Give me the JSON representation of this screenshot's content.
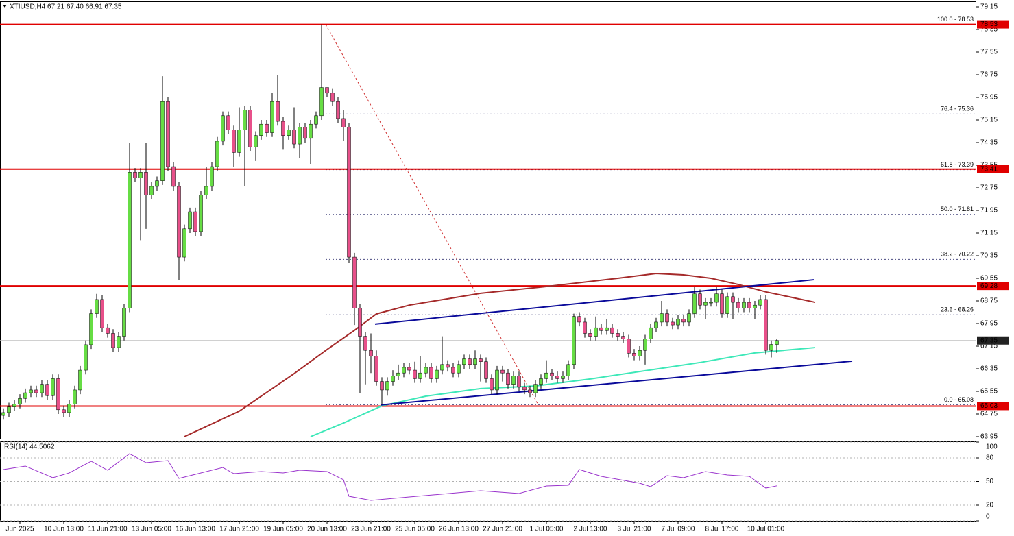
{
  "chart_data": {
    "type": "candlestick",
    "title": "XTIUSD,H4  67.21 67.40 66.91 67.35",
    "up_color": "#66dd44",
    "down_color": "#e8508a",
    "open": [
      64.7,
      64.8,
      65.0,
      65.1,
      65.3,
      65.5,
      65.6,
      65.5,
      65.8,
      65.4,
      66.0,
      64.9,
      64.8,
      65.1,
      65.6,
      66.3,
      67.2,
      68.3,
      68.8,
      67.8,
      67.6,
      67.1,
      67.5,
      68.5,
      73.3,
      73.1,
      73.3,
      72.5,
      72.8,
      73.0,
      75.8,
      73.5,
      72.8,
      70.3,
      71.3,
      71.9,
      71.2,
      72.5,
      72.8,
      73.5,
      74.4,
      75.3,
      74.8,
      74.0,
      74.8,
      75.5,
      74.2,
      74.6,
      75.0,
      74.7,
      75.8,
      75.1,
      74.6,
      74.8,
      74.3,
      74.9,
      74.5,
      75.0,
      75.3,
      76.3,
      76.1,
      75.8,
      75.2,
      74.9,
      70.3,
      68.5,
      67.5,
      67.0,
      66.8,
      65.9,
      65.6,
      65.9,
      66.1,
      66.2,
      66.4,
      66.3,
      66.0,
      66.2,
      66.4,
      66.0,
      66.3,
      66.5,
      66.4,
      66.2,
      66.5,
      66.7,
      66.5,
      66.7,
      66.6,
      66.0,
      65.6,
      66.3,
      66.2,
      65.8,
      66.1,
      65.7,
      65.6,
      65.5,
      65.8,
      66.0,
      66.2,
      66.1,
      66.0,
      66.1,
      66.5,
      68.2,
      68.0,
      67.6,
      67.5,
      67.8,
      67.7,
      67.8,
      67.6,
      67.5,
      67.4,
      66.9,
      66.8,
      67.0,
      67.4,
      67.8,
      68.0,
      68.3,
      68.0,
      67.9,
      68.1,
      68.0,
      68.3,
      69.0,
      68.6,
      68.7,
      68.7,
      69.0,
      68.3,
      68.9,
      68.7,
      68.5,
      68.7,
      68.5,
      68.6,
      68.8,
      67.0,
      67.21
    ],
    "high": [
      64.95,
      65.15,
      65.25,
      65.45,
      65.65,
      65.75,
      65.75,
      65.95,
      65.95,
      66.15,
      66.15,
      65.05,
      65.25,
      65.75,
      66.45,
      67.35,
      68.45,
      69.0,
      68.95,
      67.95,
      67.75,
      67.65,
      68.65,
      74.35,
      73.45,
      73.45,
      74.35,
      72.95,
      73.15,
      76.7,
      75.95,
      73.65,
      72.95,
      71.45,
      72.05,
      72.05,
      72.65,
      73.5,
      73.65,
      74.55,
      75.45,
      75.45,
      74.95,
      75.6,
      75.65,
      75.65,
      74.75,
      75.15,
      75.15,
      76.1,
      76.75,
      75.25,
      74.95,
      75.6,
      75.05,
      75.05,
      75.15,
      75.45,
      78.53,
      76.25,
      76.25,
      75.95,
      75.5,
      75.05,
      70.45,
      68.65,
      67.65,
      67.6,
      67.0,
      66.05,
      66.05,
      66.3,
      66.5,
      66.55,
      66.55,
      66.6,
      66.8,
      66.55,
      66.55,
      66.45,
      67.5,
      66.65,
      66.55,
      66.65,
      66.85,
      66.85,
      67.0,
      66.85,
      66.75,
      66.15,
      66.45,
      66.45,
      66.35,
      66.25,
      66.25,
      65.85,
      65.75,
      65.95,
      66.15,
      66.65,
      66.35,
      66.25,
      66.25,
      66.65,
      68.3,
      68.35,
      68.15,
      67.75,
      68.2,
      67.95,
      68.1,
      67.95,
      67.75,
      67.65,
      67.55,
      67.05,
      67.15,
      67.55,
      67.95,
      68.15,
      68.75,
      68.45,
      68.15,
      68.25,
      68.25,
      68.45,
      69.25,
      69.15,
      68.85,
      68.85,
      69.25,
      69.15,
      69.05,
      69.05,
      68.85,
      68.85,
      68.85,
      68.75,
      68.95,
      68.95,
      67.35,
      67.4
    ],
    "low": [
      64.55,
      64.65,
      64.85,
      64.95,
      65.15,
      65.35,
      65.35,
      65.35,
      65.25,
      65.25,
      64.75,
      64.65,
      64.65,
      64.95,
      65.45,
      66.15,
      67.05,
      68.15,
      67.65,
      67.45,
      66.95,
      66.95,
      67.35,
      68.35,
      72.95,
      70.9,
      71.3,
      72.35,
      72.65,
      72.85,
      73.35,
      72.65,
      69.5,
      70.15,
      71.15,
      71.05,
      71.05,
      72.35,
      72.65,
      73.35,
      74.25,
      74.65,
      73.5,
      73.85,
      72.8,
      74.05,
      73.7,
      74.45,
      74.55,
      74.55,
      74.95,
      74.1,
      74.45,
      74.15,
      73.8,
      74.35,
      73.6,
      74.85,
      75.15,
      75.95,
      75.65,
      75.05,
      74.4,
      70.1,
      67.9,
      65.5,
      65.8,
      66.2,
      65.75,
      65.08,
      65.4,
      65.75,
      65.95,
      66.05,
      66.15,
      65.85,
      65.85,
      66.05,
      65.85,
      65.85,
      66.15,
      66.25,
      66.05,
      66.05,
      66.35,
      66.35,
      66.35,
      65.9,
      65.85,
      65.45,
      65.45,
      65.9,
      65.65,
      65.65,
      65.55,
      65.45,
      65.35,
      65.35,
      65.65,
      65.85,
      65.95,
      65.85,
      65.85,
      65.95,
      66.35,
      67.85,
      67.45,
      67.35,
      67.35,
      67.55,
      67.55,
      67.45,
      67.35,
      67.25,
      66.75,
      66.65,
      66.65,
      66.5,
      67.25,
      67.65,
      67.85,
      67.85,
      67.75,
      67.75,
      67.85,
      67.85,
      68.15,
      68.45,
      68.1,
      68.55,
      68.55,
      68.15,
      68.15,
      68.1,
      68.35,
      68.35,
      68.35,
      68.1,
      68.45,
      66.85,
      66.75,
      66.91
    ],
    "close": [
      64.8,
      65.0,
      65.1,
      65.3,
      65.5,
      65.6,
      65.5,
      65.8,
      65.4,
      66.0,
      64.9,
      64.8,
      65.1,
      65.6,
      66.3,
      67.2,
      68.3,
      68.8,
      67.8,
      67.6,
      67.1,
      67.5,
      68.5,
      73.3,
      73.1,
      73.3,
      72.5,
      72.8,
      73.0,
      75.8,
      73.5,
      72.8,
      70.3,
      71.3,
      71.9,
      71.2,
      72.5,
      72.8,
      73.5,
      74.4,
      75.3,
      74.8,
      74.0,
      74.8,
      75.5,
      74.2,
      74.6,
      75.0,
      74.7,
      75.8,
      75.1,
      74.6,
      74.8,
      74.3,
      74.9,
      74.5,
      75.0,
      75.3,
      76.3,
      76.1,
      75.8,
      75.2,
      74.9,
      70.3,
      68.5,
      67.5,
      67.0,
      66.8,
      65.9,
      65.6,
      65.9,
      66.1,
      66.2,
      66.4,
      66.3,
      66.0,
      66.2,
      66.4,
      66.0,
      66.3,
      66.5,
      66.4,
      66.2,
      66.5,
      66.7,
      66.5,
      66.7,
      66.6,
      66.0,
      65.6,
      66.3,
      66.2,
      65.8,
      66.1,
      65.7,
      65.6,
      65.5,
      65.8,
      66.0,
      66.2,
      66.1,
      66.0,
      66.1,
      66.5,
      68.2,
      68.0,
      67.6,
      67.5,
      67.8,
      67.7,
      67.8,
      67.6,
      67.5,
      67.4,
      66.9,
      66.8,
      67.0,
      67.4,
      67.8,
      68.0,
      68.3,
      68.0,
      67.9,
      68.1,
      68.0,
      68.3,
      69.0,
      68.6,
      68.7,
      68.7,
      69.0,
      68.3,
      68.9,
      68.7,
      68.5,
      68.7,
      68.5,
      68.6,
      68.8,
      67.0,
      67.21,
      67.35
    ],
    "xlim": [
      -0.625,
      177.375
    ],
    "xticks": [
      {
        "value": 3,
        "label": "Jun 2025"
      },
      {
        "value": 11,
        "label": "10 Jun 13:00"
      },
      {
        "value": 19,
        "label": "11 Jun 21:00"
      },
      {
        "value": 27,
        "label": "13 Jun 05:00"
      },
      {
        "value": 35,
        "label": "16 Jun 13:00"
      },
      {
        "value": 43,
        "label": "17 Jun 21:00"
      },
      {
        "value": 51,
        "label": "19 Jun 05:00"
      },
      {
        "value": 59,
        "label": "20 Jun 13:00"
      },
      {
        "value": 67,
        "label": "23 Jun 21:00"
      },
      {
        "value": 75,
        "label": "25 Jun 05:00"
      },
      {
        "value": 83,
        "label": "26 Jun 13:00"
      },
      {
        "value": 91,
        "label": "27 Jun 21:00"
      },
      {
        "value": 99,
        "label": "1 Jul 05:00"
      },
      {
        "value": 107,
        "label": "2 Jul 13:00"
      },
      {
        "value": 115,
        "label": "3 Jul 21:00"
      },
      {
        "value": 123,
        "label": "7 Jul 09:00"
      },
      {
        "value": 131,
        "label": "8 Jul 17:00"
      },
      {
        "value": 139,
        "label": "10 Jul 01:00"
      }
    ],
    "ylim": [
      63.95,
      79.15
    ],
    "yticks": [
      79.15,
      78.35,
      77.55,
      76.75,
      75.95,
      75.15,
      74.35,
      73.55,
      72.75,
      71.95,
      71.15,
      70.35,
      69.55,
      68.75,
      67.95,
      67.15,
      66.35,
      65.55,
      64.75,
      63.95
    ],
    "levels": [
      78.53,
      73.41,
      69.28,
      65.03
    ],
    "level_color": "#e00000",
    "last_price": 67.35,
    "fib": {
      "color": "#1a1a8c",
      "line_color": "#d03030",
      "x": [
        58.75,
        97.5
      ],
      "values": [
        78.53,
        65.08
      ],
      "levels": [
        {
          "value": 78.53,
          "label": "100.0 - 78.53"
        },
        {
          "value": 75.36,
          "label": "76.4 - 75.36"
        },
        {
          "value": 73.39,
          "label": "61.8 - 73.39"
        },
        {
          "value": 71.81,
          "label": "50.0 - 71.81"
        },
        {
          "value": 70.22,
          "label": "38.2 - 70.22"
        },
        {
          "value": 68.26,
          "label": "23.6 - 68.26"
        },
        {
          "value": 65.08,
          "label": "0.0 - 65.08"
        }
      ]
    },
    "trendlines": [
      {
        "color": "#0a0a9a",
        "x": [
          67.75,
          147.75
        ],
        "values": [
          67.93,
          69.5
        ]
      },
      {
        "color": "#0a0a9a",
        "x": [
          68.75,
          154.75
        ],
        "values": [
          65.07,
          66.62
        ]
      }
    ],
    "series": [
      {
        "color": "#a52a2a",
        "x": [
          33,
          43,
          53,
          59,
          64,
          68,
          74,
          87,
          99,
          112,
          119,
          124,
          129,
          134,
          139,
          148
        ],
        "values": [
          63.95,
          64.85,
          66.18,
          67.03,
          67.71,
          68.29,
          68.6,
          69.02,
          69.26,
          69.55,
          69.72,
          69.67,
          69.55,
          69.33,
          69.07,
          68.7
        ]
      },
      {
        "color": "#3de8b8",
        "x": [
          56,
          62,
          69,
          77,
          87,
          97,
          107,
          117,
          127,
          137,
          148
        ],
        "values": [
          63.95,
          64.43,
          65.04,
          65.38,
          65.65,
          65.74,
          65.99,
          66.28,
          66.57,
          66.91,
          67.1
        ]
      }
    ],
    "rsi": {
      "label": "RSI(14) 44.5062",
      "color": "#9932cc",
      "ylim": [
        0,
        100
      ],
      "yticks": [
        100,
        80,
        50,
        20,
        0
      ],
      "x": [
        0,
        4,
        9,
        12,
        16,
        19,
        23,
        26,
        30,
        32,
        36,
        40,
        42,
        47,
        51,
        54,
        59,
        62,
        63,
        67,
        74,
        87,
        94,
        99,
        103,
        105,
        109,
        116,
        118,
        121,
        124,
        128,
        132,
        136,
        139,
        141
      ],
      "values": [
        65.2,
        69.6,
        54.8,
        60.9,
        75.7,
        64.3,
        85.2,
        73.9,
        76.5,
        53.9,
        60.9,
        67.8,
        60,
        62.6,
        60.9,
        64.3,
        62.6,
        52.2,
        31.3,
        26.1,
        30.4,
        38.3,
        34.8,
        44.3,
        45.2,
        65.2,
        56.5,
        47.8,
        43.5,
        57.4,
        54.8,
        62.6,
        58.3,
        56.5,
        41.7,
        44.5062
      ]
    }
  }
}
